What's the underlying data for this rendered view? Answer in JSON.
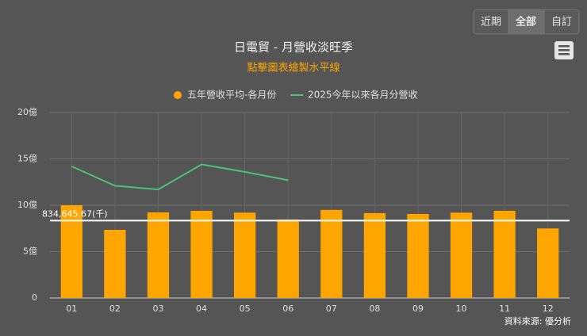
{
  "buttons": [
    "近期",
    "全部",
    "自訂"
  ],
  "source": "資料來源: 優分析",
  "chart_data": {
    "type": "bar_line",
    "title": "日電貿 - 月營收淡旺季",
    "subtitle": "點擊圖表繪製水平線",
    "categories": [
      "01",
      "02",
      "03",
      "04",
      "05",
      "06",
      "07",
      "08",
      "09",
      "10",
      "11",
      "12"
    ],
    "series": [
      {
        "name": "五年營收平均-各月份",
        "type": "bar",
        "color": "#ffa500",
        "values": [
          10.0,
          7.35,
          9.23,
          9.4,
          9.2,
          8.46,
          9.5,
          9.15,
          9.06,
          9.2,
          9.4,
          7.5
        ]
      },
      {
        "name": "2025今年以來各月分營收",
        "type": "line",
        "color": "#4cc274",
        "values": [
          14.2,
          12.1,
          11.7,
          14.4,
          13.6,
          12.7,
          null,
          null,
          null,
          null,
          null,
          null
        ]
      }
    ],
    "threshold": {
      "value": 8.3464567,
      "label": "834,645.67(千)"
    },
    "ylim": [
      0,
      20
    ],
    "yticks": [
      0,
      {
        "value": 5,
        "label": "5億"
      },
      {
        "value": 10,
        "label": "10億"
      },
      {
        "value": 15,
        "label": "15億"
      },
      {
        "value": 20,
        "label": "20億"
      }
    ],
    "grid": true
  }
}
